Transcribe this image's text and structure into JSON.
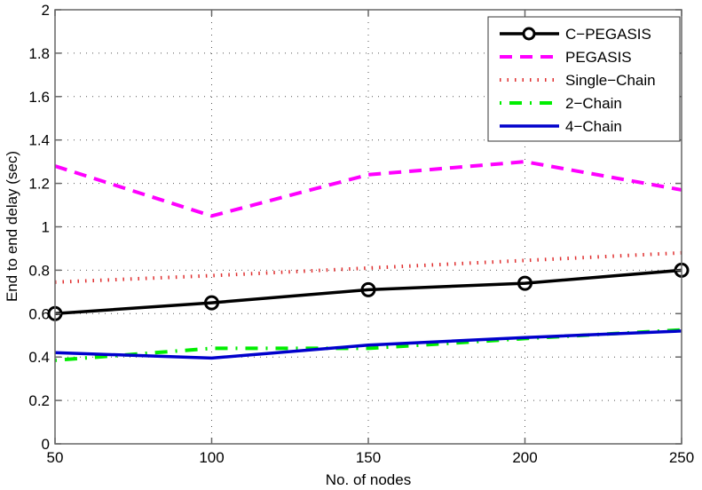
{
  "chart_data": {
    "type": "line",
    "title": "",
    "xlabel": "No. of nodes",
    "ylabel": "End to end delay (sec)",
    "x": [
      50,
      100,
      150,
      200,
      250
    ],
    "xlim": [
      50,
      250
    ],
    "ylim": [
      0,
      2
    ],
    "xticks": [
      50,
      100,
      150,
      200,
      250
    ],
    "yticks": [
      0,
      0.2,
      0.4,
      0.6,
      0.8,
      1,
      1.2,
      1.4,
      1.6,
      1.8,
      2
    ],
    "ytick_labels": [
      "0",
      "0.2",
      "0.4",
      "0.6",
      "0.8",
      "1",
      "1.2",
      "1.4",
      "1.6",
      "1.8",
      "2"
    ],
    "grid": true,
    "legend_position": "upper right",
    "series": [
      {
        "name": "C-PEGASIS",
        "color": "#000000",
        "style": "solid-circle-marker",
        "values": [
          0.6,
          0.65,
          0.71,
          0.74,
          0.8
        ]
      },
      {
        "name": "PEGASIS",
        "color": "#ff00ff",
        "style": "dashed",
        "values": [
          1.28,
          1.05,
          1.24,
          1.3,
          1.17
        ]
      },
      {
        "name": "Single-Chain",
        "color": "#ff0000",
        "style": "dotted",
        "values": [
          0.745,
          0.775,
          0.81,
          0.845,
          0.88
        ]
      },
      {
        "name": "2-Chain",
        "color": "#00ff00",
        "style": "dash-dot",
        "values": [
          0.385,
          0.44,
          0.44,
          0.485,
          0.525
        ]
      },
      {
        "name": "4-Chain",
        "color": "#0000ff",
        "style": "solid",
        "values": [
          0.42,
          0.395,
          0.455,
          0.49,
          0.52
        ]
      }
    ]
  },
  "legend": {
    "items": [
      "C−PEGASIS",
      "PEGASIS",
      "Single−Chain",
      "2−Chain",
      "4−Chain"
    ]
  },
  "axes": {
    "xlabel": "No. of nodes",
    "ylabel": "End to end delay (sec)"
  }
}
